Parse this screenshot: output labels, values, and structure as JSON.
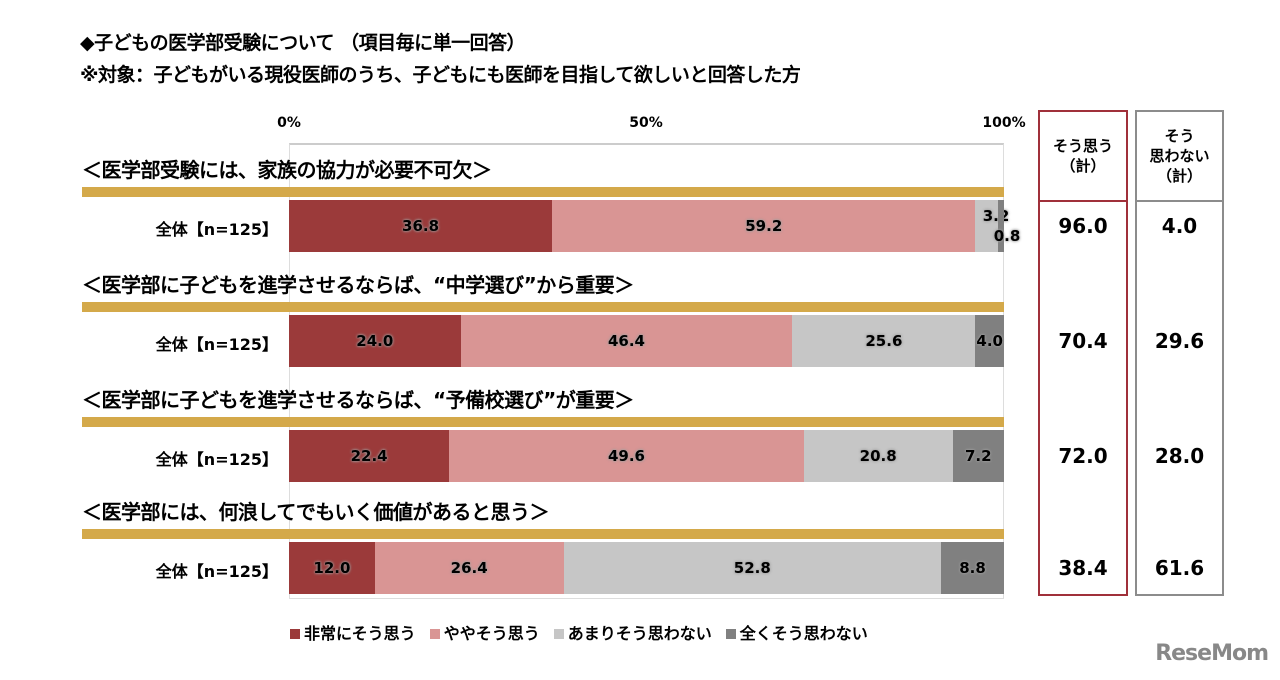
{
  "header": {
    "title": "◆子どもの医学部受験について （項目毎に単一回答）",
    "subtitle": "※対象：子どもがいる現役医師のうち、子どもにも医師を目指して欲しいと回答した方"
  },
  "chart_data": {
    "type": "bar",
    "orientation": "horizontal-stacked-100",
    "xlim": [
      0,
      100
    ],
    "ticks": [
      "0%",
      "50%",
      "100%"
    ],
    "legend_position": "bottom",
    "series": [
      {
        "name": "非常にそう思う",
        "color": "#9b3a3a"
      },
      {
        "name": "ややそう思う",
        "color": "#d99594"
      },
      {
        "name": "あまりそう思わない",
        "color": "#c6c6c6"
      },
      {
        "name": "全くそう思わない",
        "color": "#808080"
      }
    ],
    "groups": [
      {
        "title": "＜医学部受験には、家族の協力が必要不可欠＞",
        "row_label": "全体【n=125】",
        "values": [
          36.8,
          59.2,
          3.2,
          0.8
        ],
        "agree_total": "96.0",
        "disagree_total": "4.0"
      },
      {
        "title": "＜医学部に子どもを進学させるならば、“中学選び”から重要＞",
        "row_label": "全体【n=125】",
        "values": [
          24.0,
          46.4,
          25.6,
          4.0
        ],
        "agree_total": "70.4",
        "disagree_total": "29.6"
      },
      {
        "title": "＜医学部に子どもを進学させるならば、“予備校選び”が重要＞",
        "row_label": "全体【n=125】",
        "values": [
          22.4,
          49.6,
          20.8,
          7.2
        ],
        "agree_total": "72.0",
        "disagree_total": "28.0"
      },
      {
        "title": "＜医学部には、何浪してでもいく価値があると思う＞",
        "row_label": "全体【n=125】",
        "values": [
          12.0,
          26.4,
          52.8,
          8.8
        ],
        "agree_total": "38.4",
        "disagree_total": "61.6"
      }
    ],
    "summary_headers": {
      "agree": "そう思う\n（計）",
      "disagree": "そう\n思わない\n（計）"
    },
    "summary_colors": {
      "agree": "#a0303a",
      "disagree": "#8c8c8c"
    }
  },
  "logo": "ReseMom"
}
